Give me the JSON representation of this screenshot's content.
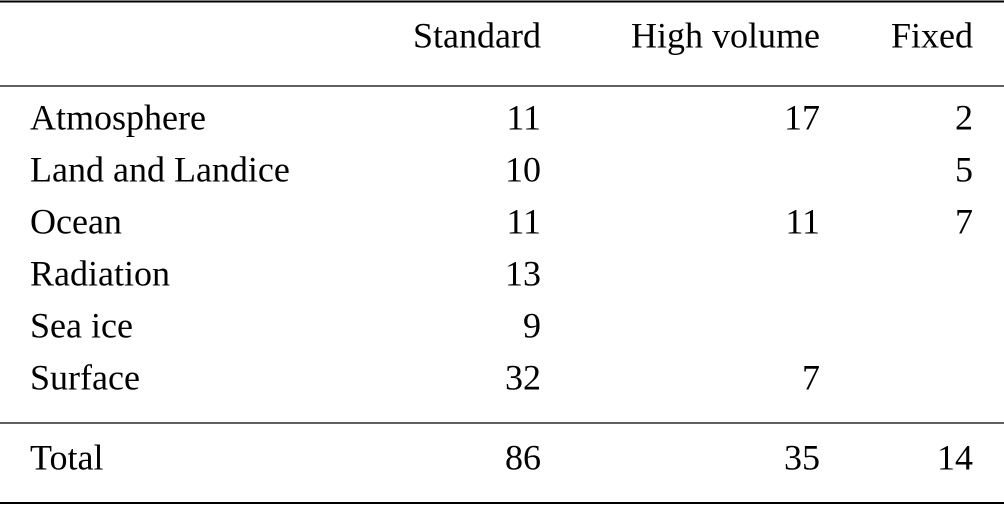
{
  "table": {
    "columns": [
      "Standard",
      "High volume",
      "Fixed"
    ],
    "rows": [
      {
        "label": "Atmosphere",
        "values": [
          11,
          17,
          2
        ]
      },
      {
        "label": "Land and Landice",
        "values": [
          10,
          null,
          5
        ]
      },
      {
        "label": "Ocean",
        "values": [
          11,
          11,
          7
        ]
      },
      {
        "label": "Radiation",
        "values": [
          13,
          null,
          null
        ]
      },
      {
        "label": "Sea ice",
        "values": [
          9,
          null,
          null
        ]
      },
      {
        "label": "Surface",
        "values": [
          32,
          7,
          null
        ]
      }
    ],
    "total": {
      "label": "Total",
      "values": [
        86,
        35,
        14
      ]
    }
  }
}
